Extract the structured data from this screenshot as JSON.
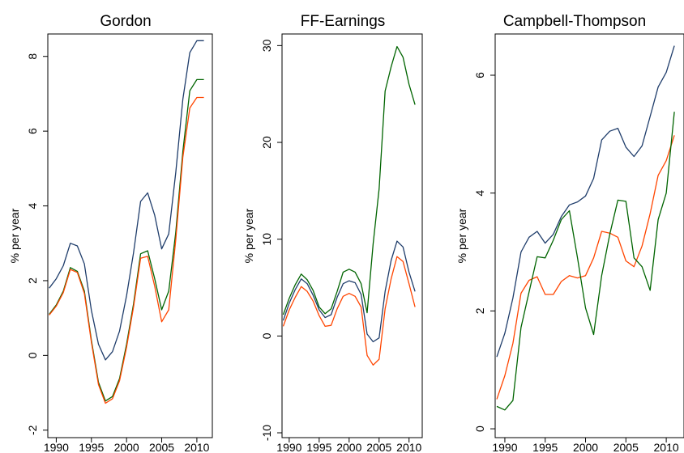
{
  "colors": {
    "navy": "#1f3d6b",
    "orange": "#ff4500",
    "green": "#006400"
  },
  "chart_data": [
    {
      "type": "line",
      "title": "Gordon",
      "xlabel": "",
      "ylabel": "% per year",
      "xlim": [
        1988.8,
        2012.2
      ],
      "ylim": [
        -2.2,
        8.6
      ],
      "yticks": [
        -2,
        0,
        2,
        4,
        6,
        8
      ],
      "ytick_labels": [
        "-2",
        "0",
        "2",
        "4",
        "6",
        "8"
      ],
      "xticks": [
        1990,
        1995,
        2000,
        2005,
        2010
      ],
      "xtick_labels": [
        "1990",
        "1995",
        "2000",
        "2005",
        "2010"
      ],
      "x": [
        1989,
        1990,
        1991,
        1992,
        1993,
        1994,
        1995,
        1996,
        1997,
        1998,
        1999,
        2000,
        2001,
        2002,
        2003,
        2004,
        2005,
        2006,
        2007,
        2008,
        2009,
        2010,
        2011
      ],
      "series": [
        {
          "color": "#1f3d6b",
          "values": [
            1.8,
            2.05,
            2.4,
            3.0,
            2.93,
            2.45,
            1.2,
            0.3,
            -0.12,
            0.1,
            0.65,
            1.6,
            2.75,
            4.12,
            4.35,
            3.75,
            2.85,
            3.25,
            4.9,
            6.85,
            8.1,
            8.42,
            8.42
          ]
        },
        {
          "color": "#006400",
          "values": [
            1.1,
            1.35,
            1.72,
            2.35,
            2.25,
            1.72,
            0.4,
            -0.72,
            -1.22,
            -1.1,
            -0.62,
            0.3,
            1.38,
            2.72,
            2.8,
            2.05,
            1.22,
            1.72,
            3.3,
            5.45,
            7.08,
            7.38,
            7.38
          ]
        },
        {
          "color": "#ff4500",
          "values": [
            1.08,
            1.32,
            1.68,
            2.3,
            2.22,
            1.66,
            0.35,
            -0.78,
            -1.28,
            -1.16,
            -0.68,
            0.22,
            1.3,
            2.6,
            2.65,
            1.85,
            0.9,
            1.22,
            3.1,
            5.3,
            6.62,
            6.9,
            6.9
          ]
        }
      ]
    },
    {
      "type": "line",
      "title": "FF-Earnings",
      "xlabel": "",
      "ylabel": "% per year",
      "xlim": [
        1988.8,
        2012.2
      ],
      "ylim": [
        -10.5,
        31.2
      ],
      "yticks": [
        -10,
        0,
        10,
        20,
        30
      ],
      "ytick_labels": [
        "-10",
        "0",
        "10",
        "20",
        "30"
      ],
      "xticks": [
        1990,
        1995,
        2000,
        2005,
        2010
      ],
      "xtick_labels": [
        "1990",
        "1995",
        "2000",
        "2005",
        "2010"
      ],
      "x": [
        1989,
        1990,
        1991,
        1992,
        1993,
        1994,
        1995,
        1996,
        1997,
        1998,
        1999,
        2000,
        2001,
        2002,
        2003,
        2004,
        2005,
        2006,
        2007,
        2008,
        2009,
        2010,
        2011
      ],
      "series": [
        {
          "color": "#006400",
          "values": [
            2.2,
            3.9,
            5.3,
            6.4,
            5.8,
            4.7,
            3.0,
            2.3,
            2.8,
            4.6,
            6.6,
            6.9,
            6.6,
            5.4,
            2.4,
            9.5,
            15.2,
            25.3,
            27.8,
            29.9,
            28.8,
            26.0,
            23.9
          ]
        },
        {
          "color": "#1f3d6b",
          "values": [
            1.6,
            3.4,
            4.8,
            5.9,
            5.4,
            4.2,
            2.7,
            1.9,
            2.2,
            4.0,
            5.4,
            5.7,
            5.5,
            4.3,
            0.2,
            -0.6,
            -0.2,
            4.6,
            7.8,
            9.8,
            9.2,
            6.6,
            4.6
          ]
        },
        {
          "color": "#ff4500",
          "values": [
            1.0,
            2.7,
            4.0,
            5.1,
            4.6,
            3.6,
            2.1,
            1.0,
            1.1,
            2.8,
            4.1,
            4.4,
            4.1,
            3.0,
            -2.0,
            -3.0,
            -2.4,
            2.8,
            5.9,
            8.2,
            7.7,
            5.4,
            3.0
          ]
        }
      ]
    },
    {
      "type": "line",
      "title": "Campbell-Thompson",
      "xlabel": "",
      "ylabel": "% per year",
      "xlim": [
        1988.8,
        2012.2
      ],
      "ylim": [
        -0.15,
        6.7
      ],
      "yticks": [
        0,
        2,
        4,
        6
      ],
      "ytick_labels": [
        "0",
        "2",
        "4",
        "6"
      ],
      "xticks": [
        1990,
        1995,
        2000,
        2005,
        2010
      ],
      "xtick_labels": [
        "1990",
        "1995",
        "2000",
        "2005",
        "2010"
      ],
      "x": [
        1989,
        1990,
        1991,
        1992,
        1993,
        1994,
        1995,
        1996,
        1997,
        1998,
        1999,
        2000,
        2001,
        2002,
        2003,
        2004,
        2005,
        2006,
        2007,
        2008,
        2009,
        2010,
        2011
      ],
      "series": [
        {
          "color": "#1f3d6b",
          "values": [
            1.22,
            1.62,
            2.22,
            3.0,
            3.25,
            3.35,
            3.15,
            3.3,
            3.6,
            3.8,
            3.85,
            3.95,
            4.25,
            4.9,
            5.05,
            5.1,
            4.78,
            4.62,
            4.8,
            5.3,
            5.8,
            6.05,
            6.5
          ]
        },
        {
          "color": "#ff4500",
          "values": [
            0.5,
            0.9,
            1.45,
            2.3,
            2.52,
            2.58,
            2.28,
            2.28,
            2.5,
            2.6,
            2.56,
            2.6,
            2.9,
            3.35,
            3.32,
            3.25,
            2.85,
            2.75,
            3.1,
            3.65,
            4.3,
            4.55,
            4.98
          ]
        },
        {
          "color": "#006400",
          "values": [
            0.38,
            0.32,
            0.48,
            1.72,
            2.32,
            2.92,
            2.9,
            3.2,
            3.55,
            3.7,
            2.9,
            2.05,
            1.6,
            2.6,
            3.3,
            3.88,
            3.86,
            2.9,
            2.75,
            2.35,
            3.55,
            4.0,
            5.38
          ]
        }
      ]
    }
  ]
}
